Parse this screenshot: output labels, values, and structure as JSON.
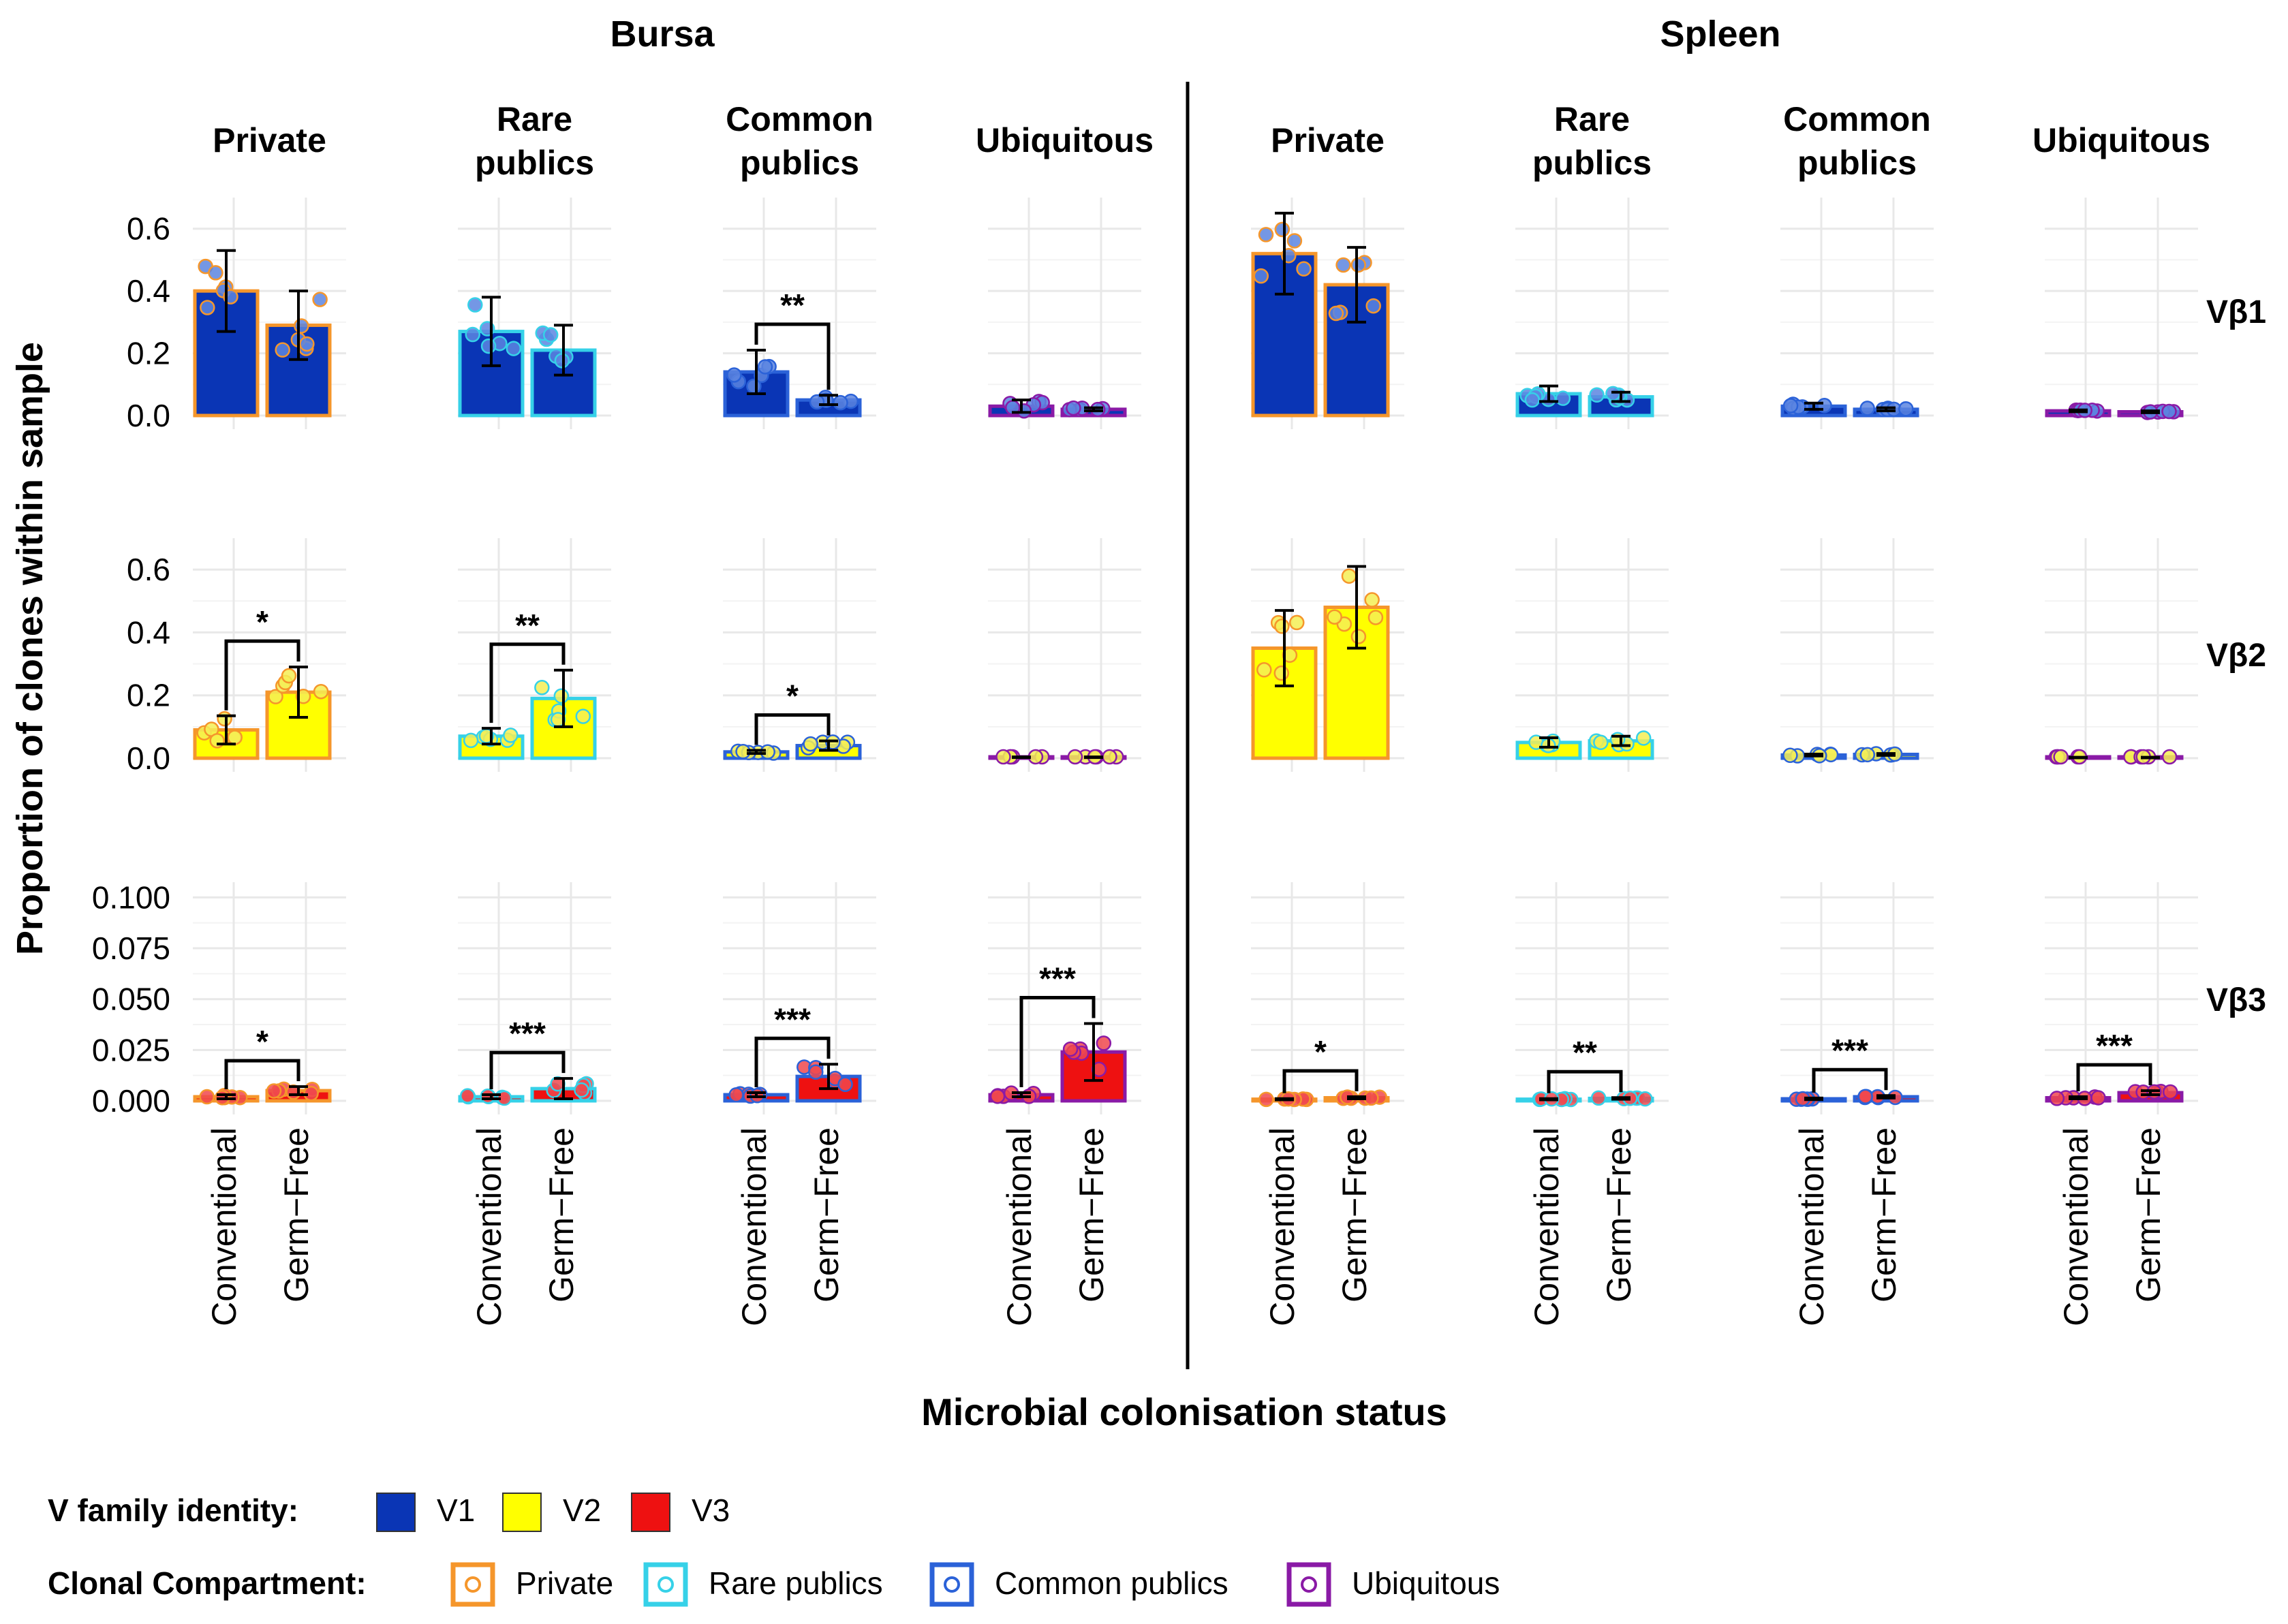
{
  "chart_data": {
    "type": "bar",
    "ylabel": "Proportion of clones within sample",
    "xlabel": "Microbial colonisation status",
    "groups": [
      "Conventional",
      "Germ−Free"
    ],
    "tissues": [
      "Bursa",
      "Spleen"
    ],
    "compartments": [
      "Private",
      "Rare publics",
      "Common publics",
      "Ubiquitous"
    ],
    "compartment_labels": [
      [
        "Private"
      ],
      [
        "Rare",
        "publics"
      ],
      [
        "Common",
        "publics"
      ],
      [
        "Ubiquitous"
      ]
    ],
    "rows": [
      {
        "label": "Vβ1",
        "family": "V1",
        "ylim": [
          0,
          0.7
        ],
        "ticks": [
          0,
          0.2,
          0.4,
          0.6
        ],
        "tick_labels": [
          "0.0",
          "0.2",
          "0.4",
          "0.6"
        ]
      },
      {
        "label": "Vβ2",
        "family": "V2",
        "ylim": [
          0,
          0.7
        ],
        "ticks": [
          0,
          0.2,
          0.4,
          0.6
        ],
        "tick_labels": [
          "0.0",
          "0.2",
          "0.4",
          "0.6"
        ]
      },
      {
        "label": "Vβ3",
        "family": "V3",
        "ylim": [
          0,
          0.1075
        ],
        "ticks": [
          0,
          0.025,
          0.05,
          0.075,
          0.1
        ],
        "tick_labels": [
          "0.000",
          "0.025",
          "0.050",
          "0.075",
          "0.100"
        ]
      }
    ],
    "series": [
      {
        "row": 0,
        "tissue": 0,
        "comp": 0,
        "conv": {
          "mean": 0.4,
          "sd": 0.13
        },
        "gf": {
          "mean": 0.29,
          "sd": 0.11
        },
        "sig": ""
      },
      {
        "row": 0,
        "tissue": 0,
        "comp": 1,
        "conv": {
          "mean": 0.27,
          "sd": 0.11
        },
        "gf": {
          "mean": 0.21,
          "sd": 0.08
        },
        "sig": ""
      },
      {
        "row": 0,
        "tissue": 0,
        "comp": 2,
        "conv": {
          "mean": 0.14,
          "sd": 0.07
        },
        "gf": {
          "mean": 0.05,
          "sd": 0.015
        },
        "sig": "**"
      },
      {
        "row": 0,
        "tissue": 0,
        "comp": 3,
        "conv": {
          "mean": 0.03,
          "sd": 0.02
        },
        "gf": {
          "mean": 0.02,
          "sd": 0.005
        },
        "sig": ""
      },
      {
        "row": 0,
        "tissue": 1,
        "comp": 0,
        "conv": {
          "mean": 0.52,
          "sd": 0.13
        },
        "gf": {
          "mean": 0.42,
          "sd": 0.12
        },
        "sig": ""
      },
      {
        "row": 0,
        "tissue": 1,
        "comp": 1,
        "conv": {
          "mean": 0.07,
          "sd": 0.025
        },
        "gf": {
          "mean": 0.06,
          "sd": 0.015
        },
        "sig": ""
      },
      {
        "row": 0,
        "tissue": 1,
        "comp": 2,
        "conv": {
          "mean": 0.03,
          "sd": 0.01
        },
        "gf": {
          "mean": 0.02,
          "sd": 0.005
        },
        "sig": ""
      },
      {
        "row": 0,
        "tissue": 1,
        "comp": 3,
        "conv": {
          "mean": 0.015,
          "sd": 0.003
        },
        "gf": {
          "mean": 0.012,
          "sd": 0.003
        },
        "sig": ""
      },
      {
        "row": 1,
        "tissue": 0,
        "comp": 0,
        "conv": {
          "mean": 0.09,
          "sd": 0.045
        },
        "gf": {
          "mean": 0.21,
          "sd": 0.08
        },
        "sig": "*"
      },
      {
        "row": 1,
        "tissue": 0,
        "comp": 1,
        "conv": {
          "mean": 0.07,
          "sd": 0.025
        },
        "gf": {
          "mean": 0.19,
          "sd": 0.09
        },
        "sig": "**"
      },
      {
        "row": 1,
        "tissue": 0,
        "comp": 2,
        "conv": {
          "mean": 0.02,
          "sd": 0.005
        },
        "gf": {
          "mean": 0.04,
          "sd": 0.015
        },
        "sig": "*"
      },
      {
        "row": 1,
        "tissue": 0,
        "comp": 3,
        "conv": {
          "mean": 0.003,
          "sd": 0.001
        },
        "gf": {
          "mean": 0.003,
          "sd": 0.001
        },
        "sig": ""
      },
      {
        "row": 1,
        "tissue": 1,
        "comp": 0,
        "conv": {
          "mean": 0.35,
          "sd": 0.12
        },
        "gf": {
          "mean": 0.48,
          "sd": 0.13
        },
        "sig": ""
      },
      {
        "row": 1,
        "tissue": 1,
        "comp": 1,
        "conv": {
          "mean": 0.05,
          "sd": 0.015
        },
        "gf": {
          "mean": 0.055,
          "sd": 0.015
        },
        "sig": ""
      },
      {
        "row": 1,
        "tissue": 1,
        "comp": 2,
        "conv": {
          "mean": 0.01,
          "sd": 0.003
        },
        "gf": {
          "mean": 0.012,
          "sd": 0.003
        },
        "sig": ""
      },
      {
        "row": 1,
        "tissue": 1,
        "comp": 3,
        "conv": {
          "mean": 0.002,
          "sd": 0.001
        },
        "gf": {
          "mean": 0.002,
          "sd": 0.001
        },
        "sig": ""
      },
      {
        "row": 2,
        "tissue": 0,
        "comp": 0,
        "conv": {
          "mean": 0.002,
          "sd": 0.001
        },
        "gf": {
          "mean": 0.005,
          "sd": 0.002
        },
        "sig": "*"
      },
      {
        "row": 2,
        "tissue": 0,
        "comp": 1,
        "conv": {
          "mean": 0.002,
          "sd": 0.001
        },
        "gf": {
          "mean": 0.006,
          "sd": 0.005
        },
        "sig": "***"
      },
      {
        "row": 2,
        "tissue": 0,
        "comp": 2,
        "conv": {
          "mean": 0.003,
          "sd": 0.001
        },
        "gf": {
          "mean": 0.012,
          "sd": 0.006
        },
        "sig": "***"
      },
      {
        "row": 2,
        "tissue": 0,
        "comp": 3,
        "conv": {
          "mean": 0.003,
          "sd": 0.001
        },
        "gf": {
          "mean": 0.024,
          "sd": 0.014
        },
        "sig": "***"
      },
      {
        "row": 2,
        "tissue": 1,
        "comp": 0,
        "conv": {
          "mean": 0.0008,
          "sd": 0.0003
        },
        "gf": {
          "mean": 0.0015,
          "sd": 0.0005
        },
        "sig": "*"
      },
      {
        "row": 2,
        "tissue": 1,
        "comp": 1,
        "conv": {
          "mean": 0.0008,
          "sd": 0.0003
        },
        "gf": {
          "mean": 0.0012,
          "sd": 0.0004
        },
        "sig": "**"
      },
      {
        "row": 2,
        "tissue": 1,
        "comp": 2,
        "conv": {
          "mean": 0.001,
          "sd": 0.0004
        },
        "gf": {
          "mean": 0.002,
          "sd": 0.0006
        },
        "sig": "***"
      },
      {
        "row": 2,
        "tissue": 1,
        "comp": 3,
        "conv": {
          "mean": 0.0015,
          "sd": 0.0005
        },
        "gf": {
          "mean": 0.004,
          "sd": 0.001
        },
        "sig": "***"
      }
    ],
    "legend": {
      "family_title": "V family identity:",
      "family_items": [
        {
          "label": "V1",
          "color": "#0a35b5"
        },
        {
          "label": "V2",
          "color": "#ffff00"
        },
        {
          "label": "V3",
          "color": "#ee1111"
        }
      ],
      "compartment_title": "Clonal Compartment:",
      "compartment_items": [
        {
          "label": "Private",
          "color": "#f5962b"
        },
        {
          "label": "Rare publics",
          "color": "#36d1e8"
        },
        {
          "label": "Common publics",
          "color": "#2b62d8"
        },
        {
          "label": "Ubiquitous",
          "color": "#8a1aa6"
        }
      ]
    },
    "family_colors": {
      "V1": "#0a35b5",
      "V2": "#ffff00",
      "V3": "#ee1111"
    },
    "compartment_colors": [
      "#f5962b",
      "#36d1e8",
      "#2b62d8",
      "#8a1aa6"
    ],
    "point_fill": {
      "V1": "#5c85e0",
      "V2": "#f4ee55",
      "V3": "#f0484e"
    },
    "grid": true,
    "legend_position": "bottom-left"
  }
}
